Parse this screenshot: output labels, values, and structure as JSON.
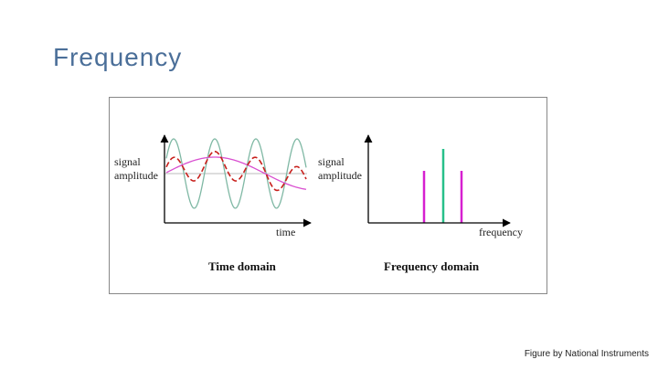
{
  "header": {
    "title": "Frequency"
  },
  "figure": {
    "time_panel": {
      "y_label": [
        "signal",
        "amplitude"
      ],
      "x_label": "time",
      "caption": "Time domain"
    },
    "frequency_panel": {
      "y_label": [
        "signal",
        "amplitude"
      ],
      "x_label": "frequency",
      "caption": "Frequency domain"
    }
  },
  "footer": {
    "credit": "Figure by National Instruments"
  }
}
